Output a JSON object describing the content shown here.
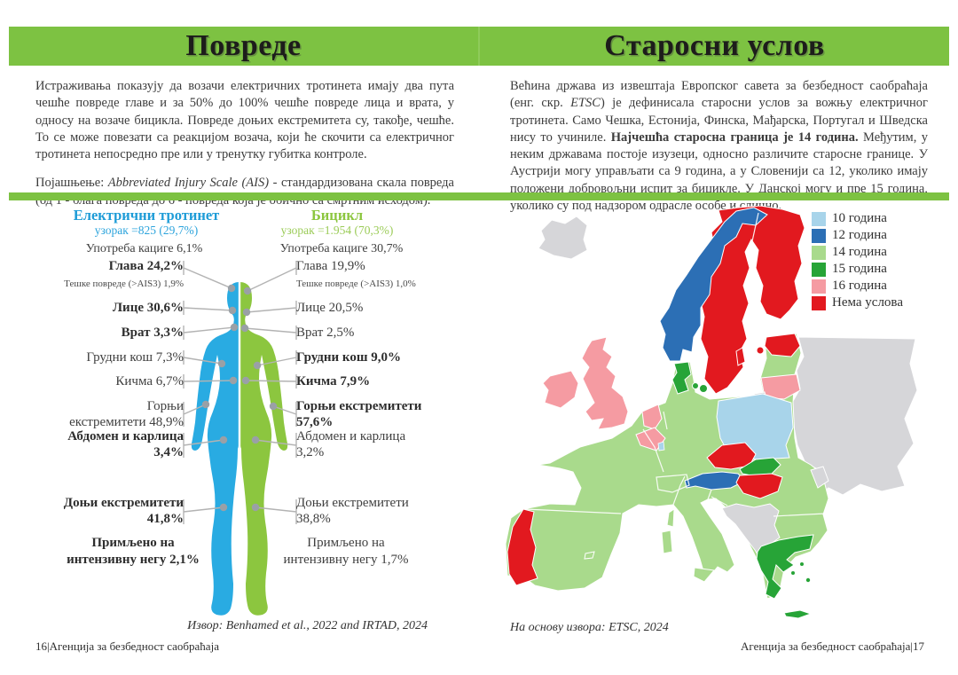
{
  "header": {
    "left_title": "Повреде",
    "right_title": "Старосни услов"
  },
  "intro_left": {
    "p1": [
      {
        "t": "Истраживања показују да возачи електричних тротинета имају два пута чешће повреде главе и за 50% до 100% чешће повреде лица и врата, у односу на возаче бицикла. Повреде доњих екстремитета су, такође, чешће. То се може повезати са реакцијом возача, који ће скочити са електричног тротинета непосредно пре или у тренутку губитка контроле."
      }
    ],
    "p2": [
      {
        "t": "Појашњење: "
      },
      {
        "t": "Abbreviated Injury Scale (AIS)",
        "i": true
      },
      {
        "t": " - стандардизована скала повреда (од 1 - блага повреда до 6 - повреда која је обично са смртним исходом)."
      }
    ]
  },
  "intro_right": {
    "p1": [
      {
        "t": "Већина држава из извештаја Европског савета за безбедност саобраћаја (енг. скр. "
      },
      {
        "t": "ETSC",
        "i": true
      },
      {
        "t": ") је дефинисала старосни услов за вожњу електричног тротинета. Само Чешка, Естонија, Финска, Мађарска, Португал и Шведска нису то учиниле. "
      },
      {
        "t": "Најчешћа старосна граница је 14 година.",
        "b": true
      },
      {
        "t": " Међутим, у неким државама постоје изузеци, односно различите старосне границе. У Аустрији могу управљати са 9 година, а у Словенији са 12, уколико имају положени добровољни испит за бицикле. У Данској могу и пре 15 година, уколико су под надзором одрасле особе и слично."
      }
    ]
  },
  "figure": {
    "scooter": {
      "title": "Електрични тротинет",
      "sample": "узорак =825 (29,7%)",
      "helmet": "Употреба кациге 6,1%",
      "head": "Глава 24,2%",
      "head_sub": "Тешке повреде (>AIS3) 1,9%",
      "face": "Лице 30,6%",
      "neck": "Врат 3,3%",
      "chest": "Грудни кош 7,3%",
      "spine": "Кичма 6,7%",
      "upper": "Горњи екстремитети 48,9%",
      "abdomen": "Абдомен и карлица 3,4%",
      "lower": "Доњи екстремитети 41,8%",
      "icu": "Примљено на интензивну негу 2,1%"
    },
    "bicycle": {
      "title": "Бицикл",
      "sample": "узорак =1.954 (70,3%)",
      "helmet": "Употреба кациге 30,7%",
      "head": "Глава 19,9%",
      "head_sub": "Тешке повреде (>AIS3) 1,0%",
      "face": "Лице 20,5%",
      "neck": "Врат 2,5%",
      "chest": "Грудни кош 9,0%",
      "spine": "Кичма 7,9%",
      "upper": "Горњи екстремитети 57,6%",
      "abdomen": "Абдомен и карлица 3,2%",
      "lower": "Доњи екстремитети 38,8%",
      "icu": "Примљено на интензивну негу 1,7%"
    },
    "source": "Извор: Benhamed et al., 2022 and IRTAD, 2024"
  },
  "map": {
    "source": "На основу извора: ETSC, 2024",
    "legend": [
      {
        "label": "10 година",
        "color": "#a8d4ea"
      },
      {
        "label": "12 година",
        "color": "#2c6fb5"
      },
      {
        "label": "14 година",
        "color": "#a9da8c"
      },
      {
        "label": "15 година",
        "color": "#27a437"
      },
      {
        "label": "16 година",
        "color": "#f59ba2"
      },
      {
        "label": "Нема услова",
        "color": "#e2191f"
      }
    ],
    "countries_by_age": {
      "10 година": [
        "Пољска",
        "Луксембург"
      ],
      "12 година": [
        "Норвешка",
        "Аустрија"
      ],
      "14 година": [
        "Немачка",
        "Француска",
        "Шпанија",
        "Италија",
        "Швајцарска",
        "Словенија",
        "Хрватска",
        "Румунија",
        "Бугарска",
        "Летонија"
      ],
      "15 година": [
        "Данска",
        "Словачка",
        "Грчка"
      ],
      "16 година": [
        "Ирска",
        "Уједињено Краљевство",
        "Холандија",
        "Белгија",
        "Литванија"
      ],
      "Нема услова": [
        "Шведска",
        "Финска",
        "Естонија",
        "Чешка",
        "Мађарска",
        "Португал"
      ]
    }
  },
  "footer": {
    "left": "16|Агенција за безбедност саобраћаја",
    "right": "Агенција за безбедност саобраћаја|17"
  },
  "colors": {
    "accent_green": "#7dc242",
    "scooter_blue": "#29abe2",
    "bicycle_green": "#8cc63f"
  }
}
